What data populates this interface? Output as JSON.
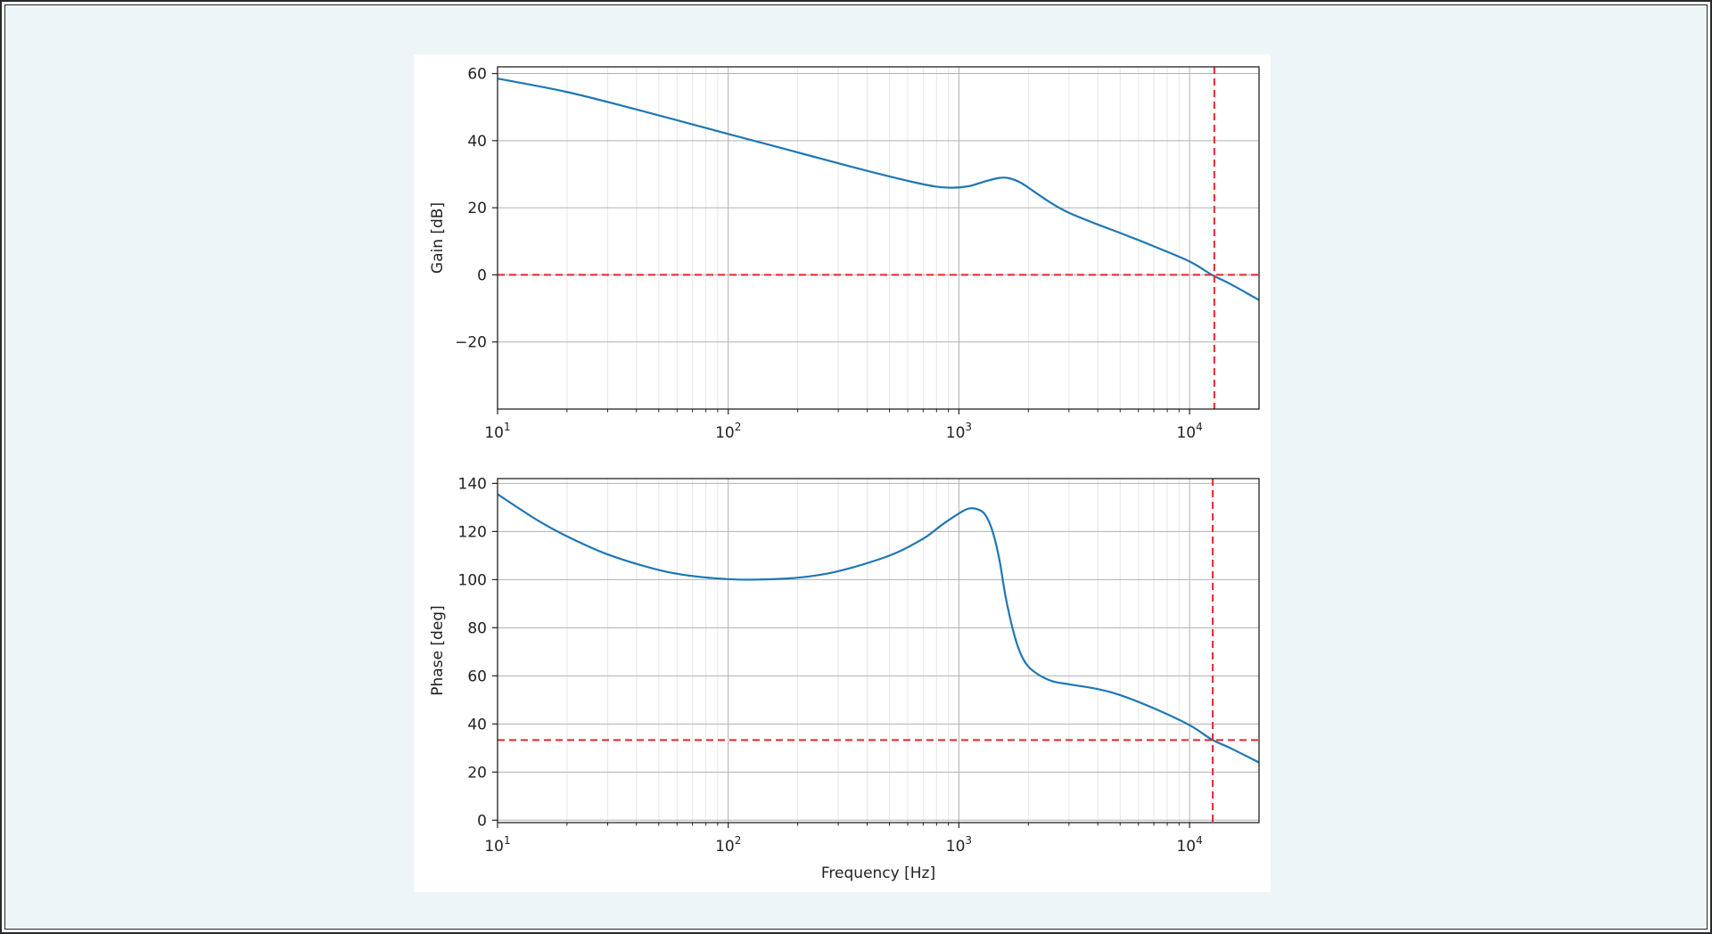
{
  "chart_data": [
    {
      "type": "line",
      "xscale": "log",
      "xlim": [
        10,
        20000
      ],
      "ylim": [
        -40,
        62
      ],
      "xlabel": "",
      "ylabel": "Gain [dB]",
      "grid": true,
      "xticks": [
        {
          "value": 10,
          "base": "10",
          "exp": "1"
        },
        {
          "value": 100,
          "base": "10",
          "exp": "2"
        },
        {
          "value": 1000,
          "base": "10",
          "exp": "3"
        },
        {
          "value": 10000,
          "base": "10",
          "exp": "4"
        }
      ],
      "yticks": [
        {
          "value": 60,
          "label": "60"
        },
        {
          "value": 40,
          "label": "40"
        },
        {
          "value": 20,
          "label": "20"
        },
        {
          "value": 0,
          "label": "0"
        },
        {
          "value": -20,
          "label": "−20"
        }
      ],
      "series": [
        {
          "color": "#1f77b4",
          "points": [
            [
              10,
              58.5
            ],
            [
              20,
              54.5
            ],
            [
              40,
              49.3
            ],
            [
              100,
              42.0
            ],
            [
              200,
              36.5
            ],
            [
              400,
              31.0
            ],
            [
              700,
              27.0
            ],
            [
              900,
              26.0
            ],
            [
              1100,
              26.4
            ],
            [
              1300,
              27.9
            ],
            [
              1500,
              28.9
            ],
            [
              1650,
              28.8
            ],
            [
              1850,
              27.5
            ],
            [
              2100,
              25.0
            ],
            [
              2500,
              21.5
            ],
            [
              3000,
              18.5
            ],
            [
              4000,
              15.0
            ],
            [
              5000,
              12.5
            ],
            [
              7000,
              8.5
            ],
            [
              10000,
              4.0
            ],
            [
              12500,
              0.0
            ],
            [
              15000,
              -2.7
            ],
            [
              20000,
              -7.5
            ]
          ]
        }
      ],
      "hlines": [
        {
          "y": 0,
          "color": "#e8262a",
          "style": "dashed"
        }
      ],
      "vlines": [
        {
          "x": 12800,
          "color": "#e8262a",
          "style": "dashed"
        }
      ]
    },
    {
      "type": "line",
      "xscale": "log",
      "xlim": [
        10,
        20000
      ],
      "ylim": [
        -1,
        142
      ],
      "xlabel": "Frequency [Hz]",
      "ylabel": "Phase [deg]",
      "grid": true,
      "xticks": [
        {
          "value": 10,
          "base": "10",
          "exp": "1"
        },
        {
          "value": 100,
          "base": "10",
          "exp": "2"
        },
        {
          "value": 1000,
          "base": "10",
          "exp": "3"
        },
        {
          "value": 10000,
          "base": "10",
          "exp": "4"
        }
      ],
      "yticks": [
        {
          "value": 140,
          "label": "140"
        },
        {
          "value": 120,
          "label": "120"
        },
        {
          "value": 100,
          "label": "100"
        },
        {
          "value": 80,
          "label": "80"
        },
        {
          "value": 60,
          "label": "60"
        },
        {
          "value": 40,
          "label": "40"
        },
        {
          "value": 20,
          "label": "20"
        },
        {
          "value": 0,
          "label": "0"
        }
      ],
      "series": [
        {
          "color": "#1f77b4",
          "points": [
            [
              10,
              135.5
            ],
            [
              15,
              124.5
            ],
            [
              20,
              118.0
            ],
            [
              30,
              110.5
            ],
            [
              50,
              104.0
            ],
            [
              70,
              101.5
            ],
            [
              100,
              100.2
            ],
            [
              130,
              100.0
            ],
            [
              200,
              100.8
            ],
            [
              300,
              103.5
            ],
            [
              500,
              110.0
            ],
            [
              700,
              117.0
            ],
            [
              850,
              123.0
            ],
            [
              1000,
              127.5
            ],
            [
              1100,
              129.5
            ],
            [
              1200,
              129.3
            ],
            [
              1300,
              127.0
            ],
            [
              1400,
              120.0
            ],
            [
              1500,
              108.0
            ],
            [
              1600,
              92.0
            ],
            [
              1750,
              76.0
            ],
            [
              1900,
              67.0
            ],
            [
              2100,
              62.0
            ],
            [
              2500,
              58.0
            ],
            [
              3000,
              56.5
            ],
            [
              4000,
              54.5
            ],
            [
              5000,
              52.0
            ],
            [
              7000,
              46.5
            ],
            [
              10000,
              39.5
            ],
            [
              12500,
              33.5
            ],
            [
              15000,
              30.0
            ],
            [
              20000,
              24.0
            ]
          ]
        }
      ],
      "hlines": [
        {
          "y": 33.3,
          "color": "#e8262a",
          "style": "dashed"
        }
      ],
      "vlines": [
        {
          "x": 12600,
          "color": "#e8262a",
          "style": "dashed"
        }
      ]
    }
  ]
}
